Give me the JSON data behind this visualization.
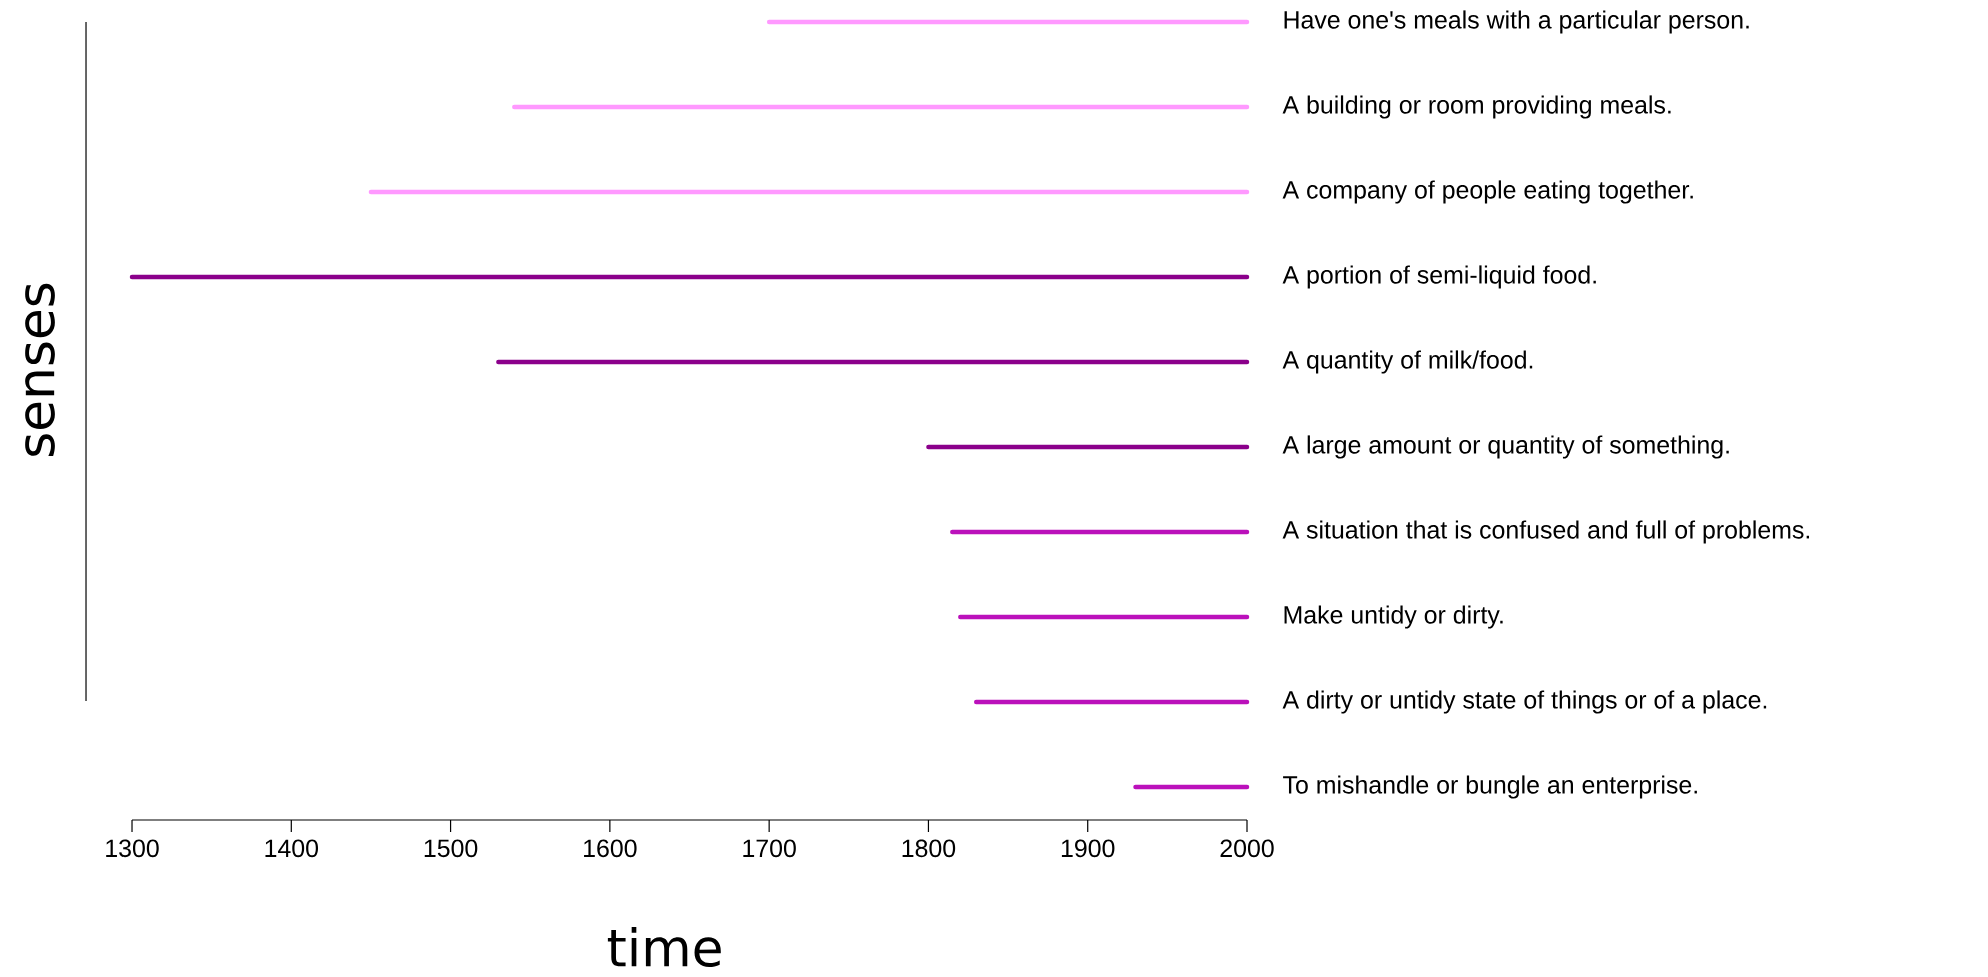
{
  "chart_data": {
    "type": "bar",
    "orientation": "horizontal",
    "xlabel": "time",
    "ylabel": "senses",
    "categories": [
      "Have one's meals with a particular person.",
      "A building or room providing meals.",
      "A company of people eating together.",
      "A portion of semi-liquid food.",
      "A quantity of milk/food.",
      "A large amount or quantity of something.",
      "A situation that is confused and full of problems.",
      "Make untidy or dirty.",
      "A dirty or untidy state of things or of a place.",
      "To mishandle or bungle an enterprise."
    ],
    "base": [
      1700,
      1540,
      1450,
      1300,
      1530,
      1800,
      1815,
      1820,
      1830,
      1930
    ],
    "values": [
      300,
      460,
      550,
      700,
      470,
      200,
      185,
      180,
      170,
      70
    ],
    "colors": [
      "#ff99ff",
      "#ff99ff",
      "#ff99ff",
      "#8b008b",
      "#8b008b",
      "#8b008b",
      "#bb11bb",
      "#bb11bb",
      "#bb11bb",
      "#bb11bb"
    ],
    "xlim": [
      1300,
      2000
    ],
    "xticks": [
      1300,
      1400,
      1500,
      1600,
      1700,
      1800,
      1900,
      2000
    ],
    "grid": false
  }
}
